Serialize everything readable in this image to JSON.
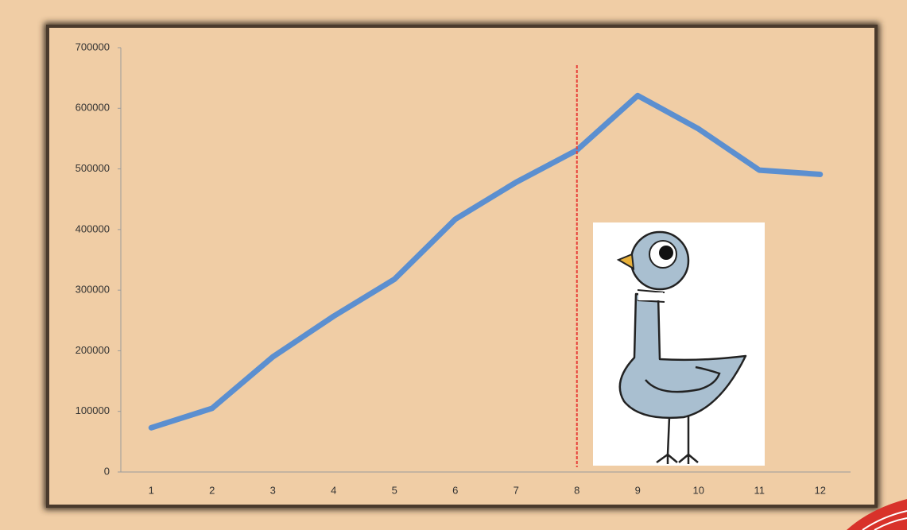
{
  "chart_data": {
    "type": "line",
    "categories": [
      "1",
      "2",
      "3",
      "4",
      "5",
      "6",
      "7",
      "8",
      "9",
      "10",
      "11",
      "12"
    ],
    "values": [
      73000,
      105000,
      190000,
      257000,
      318000,
      417000,
      478000,
      531000,
      621000,
      566000,
      498000,
      491000
    ],
    "color": "#5b8fd0",
    "ylim": [
      0,
      700000
    ],
    "yticks": [
      0,
      100000,
      200000,
      300000,
      400000,
      500000,
      600000,
      700000
    ],
    "grid": false,
    "reference_line": {
      "category": "8",
      "color": "#e8403a"
    }
  }
}
